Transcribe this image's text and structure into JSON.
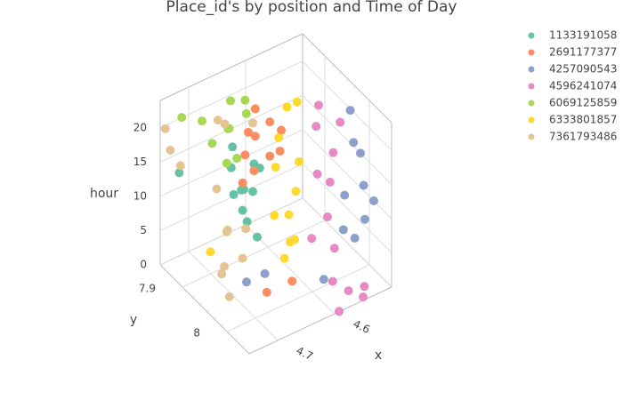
{
  "chart_data": {
    "type": "scatter3d",
    "title": "Place_id's by position and Time of Day",
    "xaxis_title": "x",
    "yaxis_title": "y",
    "zaxis_title": "hour",
    "xlim": [
      4.75,
      4.5
    ],
    "ylim": [
      7.85,
      8.05
    ],
    "zlim": [
      0,
      24
    ],
    "xticks": [
      4.6,
      4.7
    ],
    "yticks": [
      7.9,
      8
    ],
    "zticks": [
      0,
      5,
      10,
      15,
      20
    ],
    "grid": true,
    "legend": "top-right",
    "series": [
      {
        "name": "1133191058",
        "color": "#66c2a5",
        "x": [
          4.66,
          4.65,
          4.67,
          4.64,
          4.66,
          4.68,
          4.65,
          4.67,
          4.63,
          4.66,
          4.74,
          4.65
        ],
        "y": [
          7.92,
          7.91,
          7.93,
          7.92,
          7.9,
          7.92,
          7.93,
          7.91,
          7.92,
          7.93,
          7.88,
          7.94
        ],
        "z": [
          9,
          11,
          13,
          15,
          10,
          16,
          12,
          18,
          14,
          8,
          15,
          6
        ]
      },
      {
        "name": "2691177377",
        "color": "#fc8d62",
        "x": [
          4.64,
          4.62,
          4.63,
          4.65,
          4.61,
          4.62,
          4.64,
          4.6,
          4.66,
          4.63,
          4.68,
          4.62
        ],
        "y": [
          7.92,
          7.93,
          7.91,
          7.92,
          7.94,
          7.93,
          7.9,
          7.93,
          7.92,
          7.91,
          8.0,
          7.98
        ],
        "z": [
          14,
          16,
          18,
          20,
          17,
          21,
          15,
          19,
          13,
          22,
          3,
          1
        ]
      },
      {
        "name": "4257090543",
        "color": "#8da0cb",
        "x": [
          4.51,
          4.5,
          4.52,
          4.51,
          4.5,
          4.52,
          4.51,
          4.5,
          4.53,
          4.66,
          4.7,
          4.58
        ],
        "y": [
          7.98,
          7.99,
          7.97,
          8.0,
          7.98,
          7.99,
          7.97,
          8.01,
          7.98,
          7.97,
          7.98,
          8.0
        ],
        "z": [
          3,
          6,
          9,
          12,
          15,
          18,
          21,
          10,
          5,
          3,
          4,
          1
        ]
      },
      {
        "name": "4596241074",
        "color": "#e78ac3",
        "x": [
          4.57,
          4.55,
          4.53,
          4.56,
          4.54,
          4.52,
          4.55,
          4.57,
          4.53,
          4.56,
          4.54,
          4.58,
          4.55,
          4.6
        ],
        "y": [
          7.96,
          7.97,
          7.95,
          7.96,
          7.97,
          7.96,
          7.95,
          7.97,
          7.96,
          8.03,
          8.04,
          8.02,
          8.05,
          8.06
        ],
        "z": [
          4,
          7,
          10,
          13,
          16,
          19,
          22,
          21,
          1,
          0.5,
          1,
          2,
          0.5,
          1
        ]
      },
      {
        "name": "6069125859",
        "color": "#a6d854",
        "x": [
          4.69,
          4.67,
          4.65,
          4.68,
          4.66,
          4.64,
          4.7,
          4.67,
          4.63,
          4.72
        ],
        "y": [
          7.89,
          7.9,
          7.88,
          7.91,
          7.89,
          7.9,
          7.88,
          7.92,
          7.89,
          7.86
        ],
        "z": [
          18,
          20,
          22,
          16,
          19,
          23,
          21,
          17,
          20,
          21
        ]
      },
      {
        "name": "6333801857",
        "color": "#ffd92f",
        "x": [
          4.61,
          4.6,
          4.62,
          4.59,
          4.61,
          4.6,
          4.62,
          4.58,
          4.61,
          4.6,
          4.74,
          4.59
        ],
        "y": [
          7.95,
          7.96,
          7.94,
          7.95,
          7.93,
          7.97,
          7.95,
          7.94,
          7.96,
          7.95,
          7.95,
          7.93
        ],
        "z": [
          2,
          5,
          8,
          11,
          14,
          17,
          20,
          23,
          9,
          4,
          8,
          22
        ]
      },
      {
        "name": "7361793486",
        "color": "#e5c494",
        "x": [
          4.74,
          4.745,
          4.73,
          4.72,
          4.7,
          4.68,
          4.66,
          4.69,
          4.67,
          4.65,
          4.71,
          4.73,
          4.68,
          4.66
        ],
        "y": [
          7.86,
          7.855,
          7.87,
          7.95,
          7.93,
          7.91,
          7.92,
          7.9,
          7.94,
          7.93,
          7.95,
          7.98,
          7.89,
          7.88
        ],
        "z": [
          17,
          20,
          15,
          4,
          3,
          6,
          2,
          12,
          8,
          22,
          10,
          3,
          21,
          19
        ]
      }
    ]
  }
}
